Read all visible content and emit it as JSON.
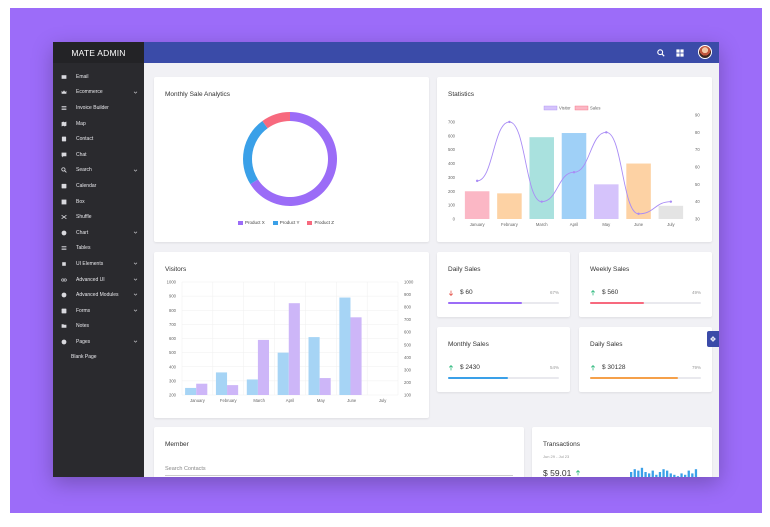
{
  "brand": "MATE ADMIN",
  "sidebar": {
    "items": [
      {
        "label": "Email",
        "icon": "mail-icon",
        "chevron": false
      },
      {
        "label": "Ecommerce",
        "icon": "crown-icon",
        "chevron": true
      },
      {
        "label": "Invoice Builder",
        "icon": "invoice-icon",
        "chevron": false
      },
      {
        "label": "Map",
        "icon": "map-icon",
        "chevron": false
      },
      {
        "label": "Contact",
        "icon": "contact-icon",
        "chevron": false
      },
      {
        "label": "Chat",
        "icon": "chat-icon",
        "chevron": false
      },
      {
        "label": "Search",
        "icon": "search-icon",
        "chevron": true
      },
      {
        "label": "Calendar",
        "icon": "calendar-icon",
        "chevron": false
      },
      {
        "label": "Box",
        "icon": "box-icon",
        "chevron": false
      },
      {
        "label": "Shuffle",
        "icon": "shuffle-icon",
        "chevron": false
      },
      {
        "label": "Chart",
        "icon": "chart-icon",
        "chevron": true
      },
      {
        "label": "Tables",
        "icon": "table-icon",
        "chevron": false
      },
      {
        "label": "UI Elements",
        "icon": "puzzle-icon",
        "chevron": true
      },
      {
        "label": "Advanced UI",
        "icon": "infinity-icon",
        "chevron": true
      },
      {
        "label": "Advanced Modules",
        "icon": "module-icon",
        "chevron": true
      },
      {
        "label": "Forms",
        "icon": "form-icon",
        "chevron": true
      },
      {
        "label": "Notes",
        "icon": "folder-icon",
        "chevron": false
      },
      {
        "label": "Pages",
        "icon": "pages-icon",
        "chevron": true
      }
    ],
    "sub_item": "Blank Page"
  },
  "cards": {
    "monthly_sale": {
      "title": "Monthly Sale Analytics",
      "legend": [
        {
          "label": "Product X",
          "color": "#9b6cf7"
        },
        {
          "label": "Product Y",
          "color": "#3aa0e8"
        },
        {
          "label": "Product Z",
          "color": "#f7697e"
        }
      ]
    },
    "statistics": {
      "title": "Statistics"
    },
    "visitors": {
      "title": "Visitors"
    },
    "daily_sales_1": {
      "title": "Daily Sales",
      "value": "$ 60",
      "pct": "67%",
      "trend": "down",
      "fill": 0.67,
      "color": "#9b6cf7"
    },
    "weekly_sales": {
      "title": "Weekly Sales",
      "value": "$ 560",
      "pct": "49%",
      "trend": "up",
      "fill": 0.49,
      "color": "#f7697e"
    },
    "monthly_sales": {
      "title": "Monthly Sales",
      "value": "$ 2430",
      "pct": "54%",
      "trend": "up",
      "fill": 0.54,
      "color": "#3aa0e8"
    },
    "daily_sales_2": {
      "title": "Daily Sales",
      "value": "$ 30128",
      "pct": "79%",
      "trend": "up",
      "fill": 0.79,
      "color": "#f5a04a"
    },
    "member": {
      "title": "Member",
      "search_placeholder": "Search Contacts"
    },
    "transactions": {
      "title": "Transactions",
      "date_range": "Jun 29 - Jul 23",
      "value": "$ 59.01"
    }
  },
  "chart_data": [
    {
      "type": "pie",
      "title": "Monthly Sale Analytics",
      "labels": [
        "Product X",
        "Product Y",
        "Product Z"
      ],
      "values": [
        66,
        24,
        10
      ],
      "colors": [
        "#9b6cf7",
        "#3aa0e8",
        "#f7697e"
      ]
    },
    {
      "type": "bar",
      "title": "Statistics",
      "categories": [
        "January",
        "February",
        "March",
        "April",
        "May",
        "June",
        "July"
      ],
      "ylim": [
        0,
        750
      ],
      "yticks": [
        0,
        100,
        200,
        300,
        400,
        500,
        600,
        700
      ],
      "y2lim": [
        30,
        90
      ],
      "y2ticks": [
        30,
        40,
        50,
        60,
        70,
        80,
        90
      ],
      "series": [
        {
          "name": "Visitor",
          "type": "line",
          "axis": "right",
          "values": [
            52,
            86,
            40,
            57,
            80,
            33,
            40
          ],
          "color": "#a98cf5"
        },
        {
          "name": "Sales",
          "type": "bar",
          "axis": "left",
          "values": [
            200,
            185,
            590,
            620,
            250,
            400,
            95
          ],
          "colors": [
            "#fbb7c5",
            "#fdd2a4",
            "#a9e1de",
            "#9fd0f7",
            "#d5c3fb",
            "#fdd2a4",
            "#e4e4e4"
          ]
        }
      ],
      "legend": [
        "Visitor",
        "Sales"
      ]
    },
    {
      "type": "bar",
      "title": "Visitors",
      "categories": [
        "January",
        "February",
        "March",
        "April",
        "May",
        "June",
        "July"
      ],
      "ylim": [
        200,
        1000
      ],
      "yticks": [
        200,
        300,
        400,
        500,
        600,
        700,
        800,
        900,
        1000
      ],
      "y2lim": [
        100,
        1000
      ],
      "y2ticks": [
        100,
        200,
        300,
        400,
        500,
        600,
        700,
        800,
        900,
        1000
      ],
      "series": [
        {
          "name": "",
          "values": [
            250,
            360,
            310,
            500,
            610,
            890,
            null
          ],
          "color": "#a6d4f5"
        },
        {
          "name": "",
          "values": [
            280,
            270,
            590,
            850,
            320,
            750,
            null
          ],
          "color": "#cdb6f8"
        }
      ]
    },
    {
      "type": "bar",
      "title": "Transactions",
      "values": [
        5,
        7,
        6,
        8,
        5,
        4,
        6,
        3,
        5,
        7,
        6,
        4,
        3,
        2,
        4,
        3,
        6,
        4,
        7
      ],
      "color": "#3aa0e8"
    }
  ]
}
